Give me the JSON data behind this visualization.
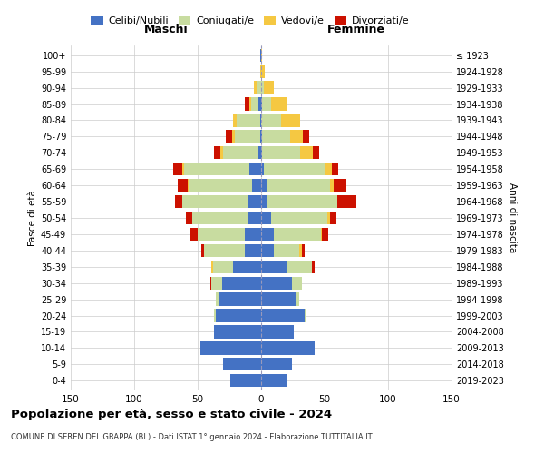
{
  "age_groups": [
    "0-4",
    "5-9",
    "10-14",
    "15-19",
    "20-24",
    "25-29",
    "30-34",
    "35-39",
    "40-44",
    "45-49",
    "50-54",
    "55-59",
    "60-64",
    "65-69",
    "70-74",
    "75-79",
    "80-84",
    "85-89",
    "90-94",
    "95-99",
    "100+"
  ],
  "birth_years": [
    "2019-2023",
    "2014-2018",
    "2009-2013",
    "2004-2008",
    "1999-2003",
    "1994-1998",
    "1989-1993",
    "1984-1988",
    "1979-1983",
    "1974-1978",
    "1969-1973",
    "1964-1968",
    "1959-1963",
    "1954-1958",
    "1949-1953",
    "1944-1948",
    "1939-1943",
    "1934-1938",
    "1929-1933",
    "1924-1928",
    "≤ 1923"
  ],
  "maschi": {
    "celibi": [
      24,
      30,
      48,
      37,
      36,
      33,
      31,
      22,
      13,
      13,
      10,
      10,
      7,
      9,
      2,
      1,
      1,
      2,
      0,
      0,
      1
    ],
    "coniugati": [
      0,
      0,
      0,
      0,
      1,
      3,
      8,
      16,
      32,
      37,
      44,
      52,
      50,
      52,
      28,
      20,
      18,
      6,
      3,
      0,
      0
    ],
    "vedovi": [
      0,
      0,
      0,
      0,
      0,
      0,
      0,
      1,
      0,
      0,
      0,
      0,
      1,
      1,
      2,
      2,
      3,
      1,
      3,
      1,
      0
    ],
    "divorziati": [
      0,
      0,
      0,
      0,
      0,
      0,
      1,
      0,
      2,
      6,
      5,
      6,
      8,
      7,
      5,
      5,
      0,
      4,
      0,
      0,
      0
    ]
  },
  "femmine": {
    "nubili": [
      20,
      24,
      42,
      26,
      34,
      27,
      24,
      20,
      10,
      10,
      8,
      5,
      4,
      2,
      1,
      1,
      0,
      1,
      0,
      0,
      0
    ],
    "coniugate": [
      0,
      0,
      0,
      0,
      1,
      3,
      8,
      20,
      20,
      37,
      44,
      55,
      50,
      48,
      30,
      22,
      16,
      7,
      2,
      0,
      0
    ],
    "vedove": [
      0,
      0,
      0,
      0,
      0,
      0,
      0,
      0,
      2,
      1,
      2,
      0,
      3,
      6,
      10,
      10,
      15,
      13,
      8,
      3,
      1
    ],
    "divorziate": [
      0,
      0,
      0,
      0,
      0,
      0,
      0,
      2,
      2,
      5,
      5,
      15,
      10,
      5,
      5,
      5,
      0,
      0,
      0,
      0,
      0
    ]
  },
  "colors": {
    "celibi": "#4472c4",
    "coniugati": "#c8dca0",
    "vedovi": "#f5c842",
    "divorziati": "#cc1100"
  },
  "title": "Popolazione per età, sesso e stato civile - 2024",
  "subtitle": "COMUNE DI SEREN DEL GRAPPA (BL) - Dati ISTAT 1° gennaio 2024 - Elaborazione TUTTITALIA.IT",
  "xlabel_left": "Maschi",
  "xlabel_right": "Femmine",
  "ylabel_left": "Fasce di età",
  "ylabel_right": "Anni di nascita",
  "xlim": 150,
  "background_color": "#ffffff",
  "grid_color": "#cccccc"
}
